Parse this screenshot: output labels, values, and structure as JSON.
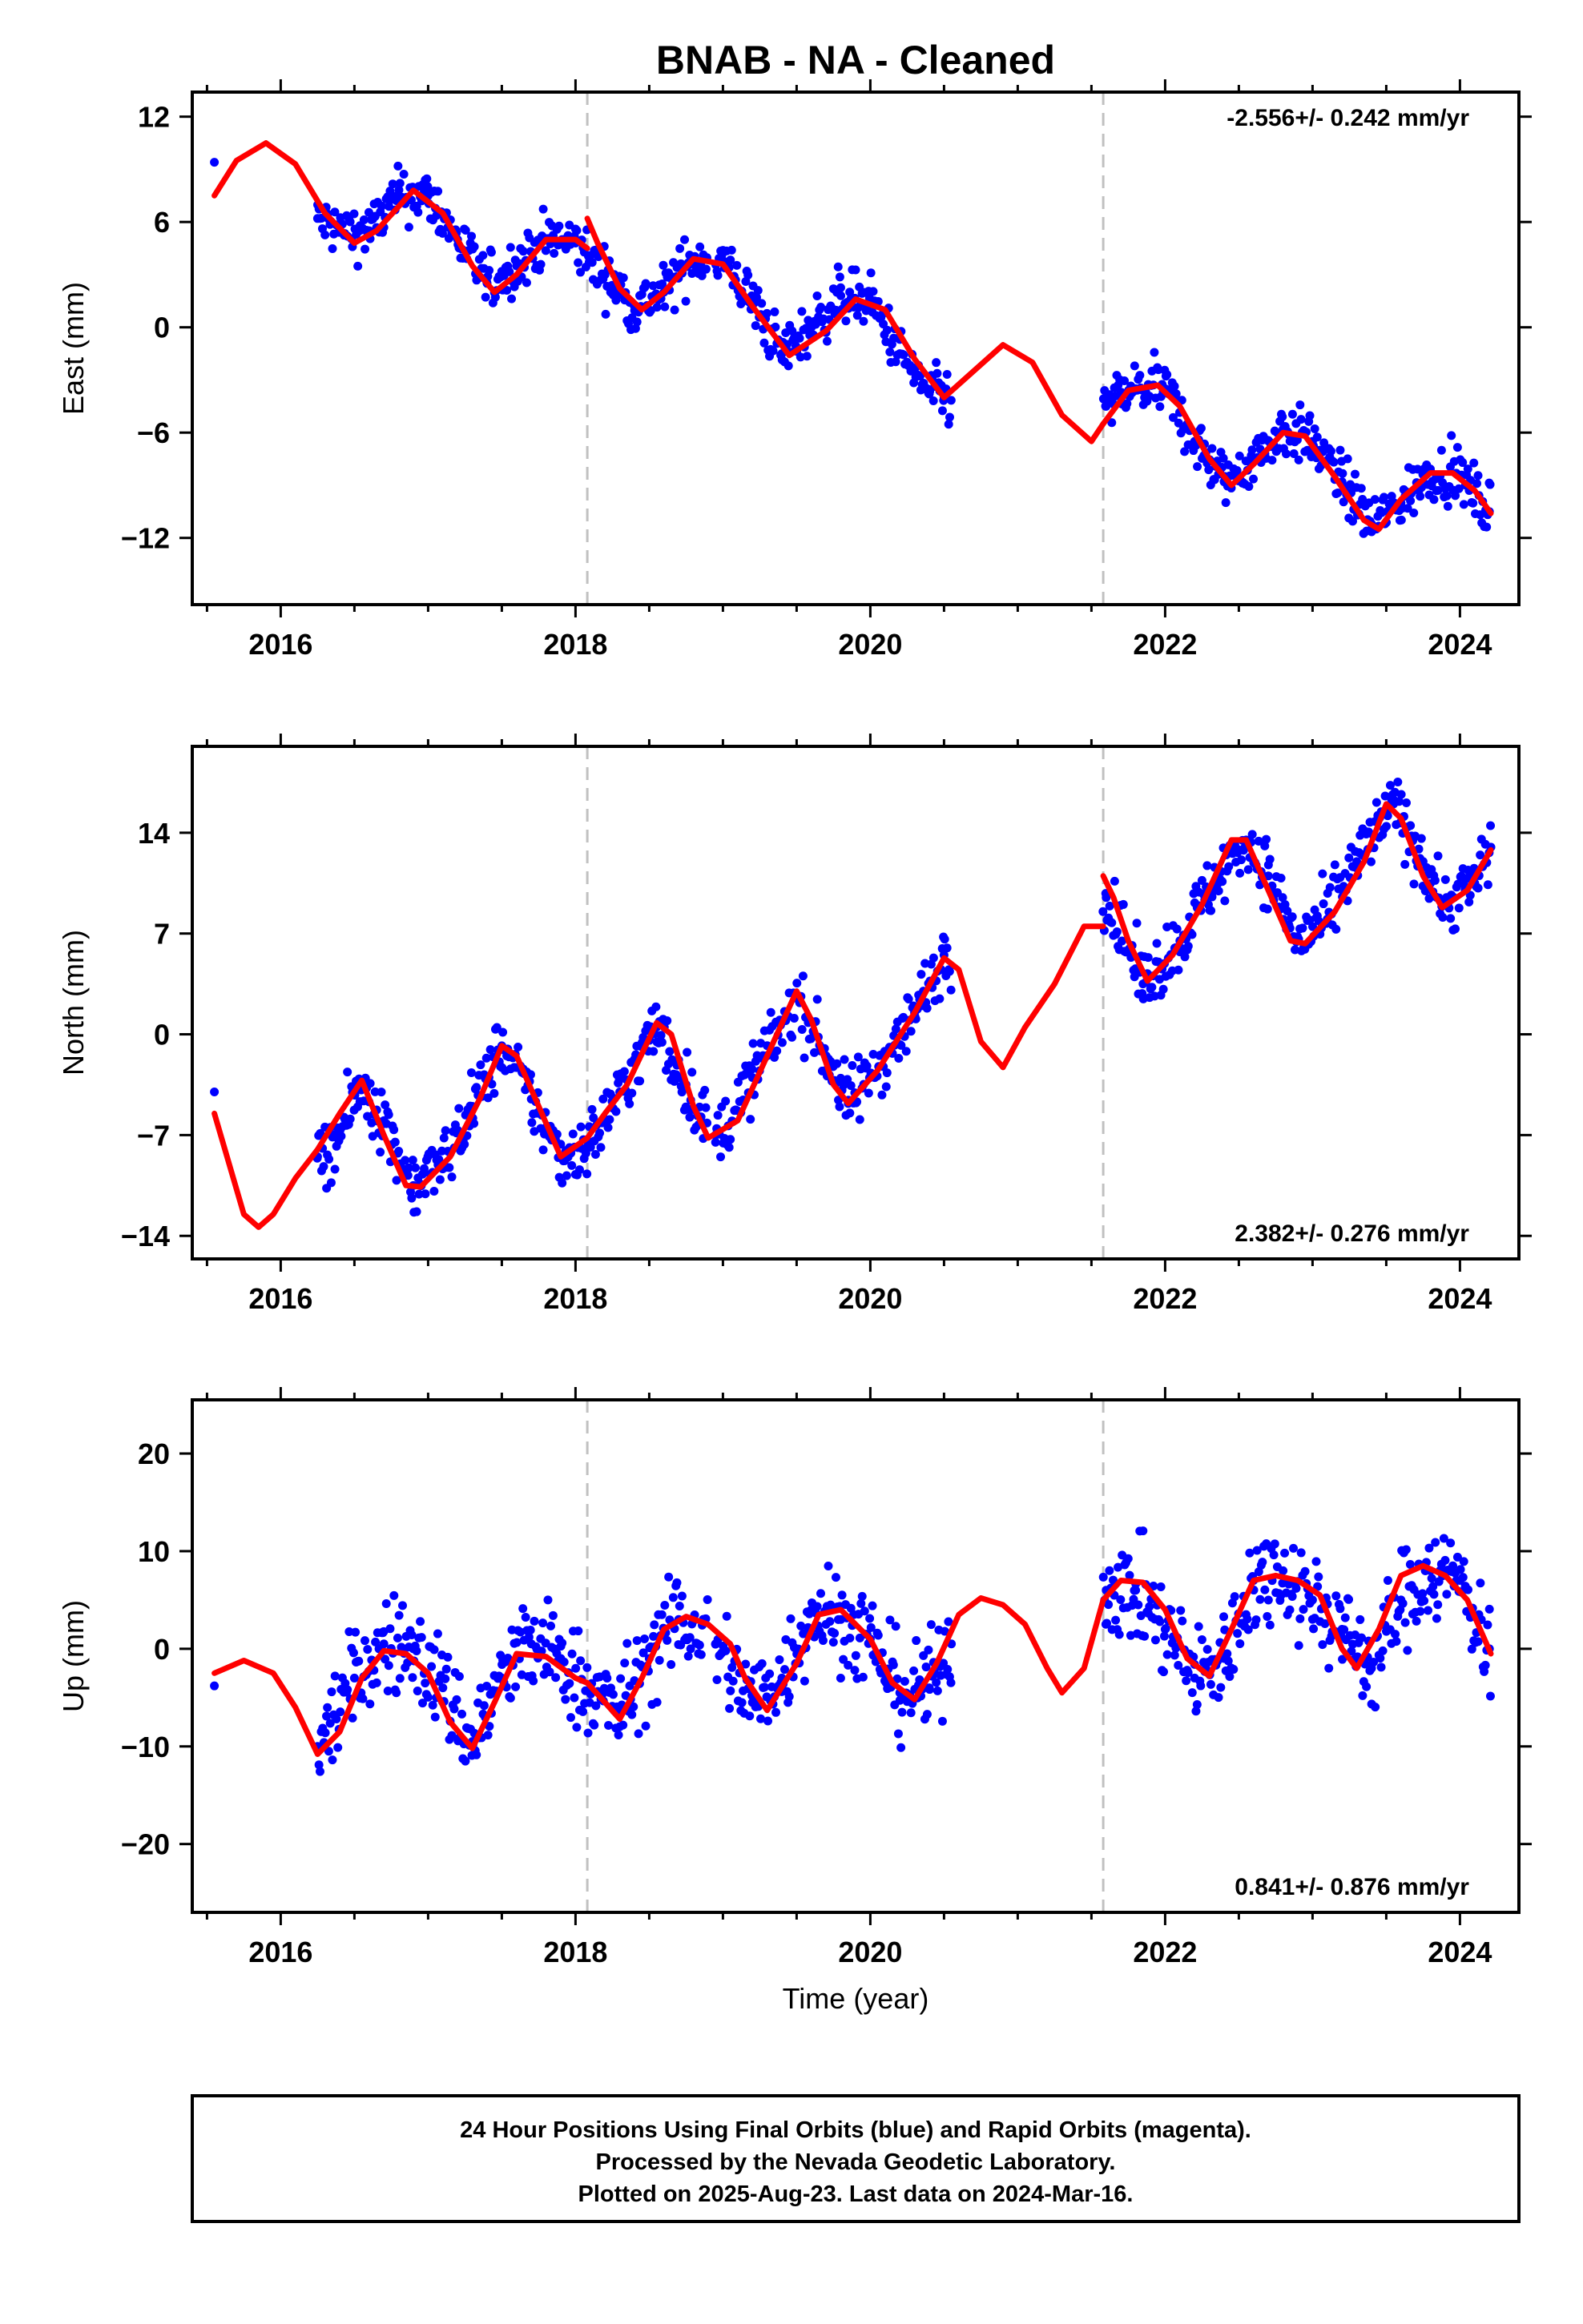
{
  "title": "BNAB  - NA - Cleaned",
  "xlabel": "Time (year)",
  "footer": [
    "24 Hour Positions Using Final Orbits (blue) and Rapid Orbits (magenta).",
    "Processed by the Nevada Geodetic Laboratory.",
    "Plotted on 2025-Aug-23. Last data on 2024-Mar-16."
  ],
  "colors": {
    "data": "#0000ff",
    "model": "#ff0000",
    "offset_line": "#c0c0c0",
    "frame": "#000000"
  },
  "chart_data": [
    {
      "type": "scatter",
      "component": "East",
      "ylabel": "East (mm)",
      "rate_label": "-2.556+/- 0.242 mm/yr",
      "rate_position": "top-right",
      "xlim": [
        2015.4,
        2024.4
      ],
      "ylim": [
        -15.8,
        13.4
      ],
      "xticks": [
        2016,
        2018,
        2020,
        2022,
        2024
      ],
      "yticks": [
        -12,
        -6,
        0,
        6,
        12
      ],
      "ytick_labels": [
        "−12",
        "−6",
        "0",
        "6",
        "12"
      ],
      "offsets": [
        2018.08,
        2021.58
      ],
      "grid": false,
      "series": [
        {
          "kind": "points",
          "color": "#0000ff",
          "data_segments": [
            [
              2016.25,
              2018.9
            ],
            [
              2018.95,
              2020.55
            ],
            [
              2021.58,
              2024.21
            ]
          ],
          "x": [
            2015.55,
            2016.25,
            2016.4,
            2016.6,
            2016.8,
            2017.0,
            2017.2,
            2017.4,
            2017.6,
            2017.8,
            2018.0,
            2018.2,
            2018.4,
            2018.6,
            2018.8,
            2019.0,
            2019.2,
            2019.4,
            2019.6,
            2019.8,
            2020.0,
            2020.2,
            2020.4,
            2020.5,
            2021.6,
            2021.8,
            2022.0,
            2022.2,
            2022.4,
            2022.6,
            2022.8,
            2023.0,
            2023.2,
            2023.4,
            2023.6,
            2023.8,
            2024.0,
            2024.2
          ],
          "y": [
            9.4,
            6.2,
            5.5,
            5.5,
            7.5,
            7.5,
            5.0,
            2.5,
            3.5,
            5.0,
            4.8,
            3.0,
            1.2,
            2.0,
            4.0,
            3.8,
            1.5,
            -1.5,
            0.0,
            1.8,
            1.5,
            -1.5,
            -3.8,
            -4.0,
            -4.5,
            -3.5,
            -3.5,
            -6.5,
            -8.8,
            -7.5,
            -5.8,
            -6.5,
            -8.8,
            -11.2,
            -10.0,
            -8.2,
            -8.5,
            -10.5
          ]
        },
        {
          "kind": "model",
          "color": "#ff0000",
          "segments": [
            {
              "x": [
                2015.55,
                2015.7,
                2015.9,
                2016.1,
                2016.3,
                2016.5,
                2016.65,
                2016.9,
                2017.1,
                2017.3,
                2017.45,
                2017.6,
                2017.8,
                2018.0,
                2018.08
              ],
              "y": [
                7.5,
                9.5,
                10.5,
                9.3,
                6.5,
                4.8,
                5.5,
                7.8,
                6.5,
                3.5,
                2.0,
                3.0,
                5.0,
                5.0,
                4.5
              ]
            },
            {
              "x": [
                2018.08,
                2018.15,
                2018.3,
                2018.45,
                2018.6,
                2018.8,
                2019.0,
                2019.2,
                2019.45,
                2019.7,
                2019.9,
                2020.1,
                2020.3,
                2020.5,
                2020.7,
                2020.9,
                2021.1,
                2021.3,
                2021.5,
                2021.58
              ],
              "y": [
                6.2,
                4.8,
                2.2,
                1.0,
                2.0,
                3.9,
                3.6,
                1.2,
                -1.6,
                -0.2,
                1.6,
                1.0,
                -1.8,
                -4.0,
                -2.5,
                -1.0,
                -2.0,
                -5.0,
                -6.5,
                -5.5
              ]
            },
            {
              "x": [
                2021.58,
                2021.75,
                2021.95,
                2022.1,
                2022.3,
                2022.45,
                2022.6,
                2022.8,
                2022.95,
                2023.15,
                2023.35,
                2023.45,
                2023.6,
                2023.8,
                2023.95,
                2024.1,
                2024.21
              ],
              "y": [
                -5.5,
                -3.6,
                -3.3,
                -4.5,
                -7.5,
                -9.0,
                -7.8,
                -6.0,
                -6.2,
                -8.5,
                -11.0,
                -11.5,
                -9.8,
                -8.3,
                -8.3,
                -9.3,
                -10.6
              ]
            }
          ]
        }
      ]
    },
    {
      "type": "scatter",
      "component": "North",
      "ylabel": "North (mm)",
      "rate_label": "2.382+/- 0.276 mm/yr",
      "rate_position": "bottom-right",
      "xlim": [
        2015.4,
        2024.4
      ],
      "ylim": [
        -15.6,
        20.0
      ],
      "xticks": [
        2016,
        2018,
        2020,
        2022,
        2024
      ],
      "yticks": [
        -14,
        -7,
        0,
        7,
        14
      ],
      "ytick_labels": [
        "−14",
        "−7",
        "0",
        "7",
        "14"
      ],
      "offsets": [
        2018.08,
        2021.58
      ],
      "grid": false,
      "series": [
        {
          "kind": "points",
          "color": "#0000ff",
          "data_segments": [
            [
              2016.25,
              2018.9
            ],
            [
              2018.95,
              2020.55
            ],
            [
              2021.58,
              2024.21
            ]
          ],
          "x": [
            2015.55,
            2016.25,
            2016.4,
            2016.55,
            2016.7,
            2016.9,
            2017.1,
            2017.3,
            2017.5,
            2017.7,
            2017.9,
            2018.1,
            2018.3,
            2018.55,
            2018.75,
            2018.95,
            2019.2,
            2019.5,
            2019.7,
            2019.85,
            2020.1,
            2020.3,
            2020.5,
            2021.6,
            2021.85,
            2022.1,
            2022.3,
            2022.55,
            2022.7,
            2022.9,
            2023.1,
            2023.3,
            2023.55,
            2023.75,
            2023.9,
            2024.1,
            2024.21
          ],
          "y": [
            -4.0,
            -8.5,
            -7.0,
            -3.5,
            -6.0,
            -10.5,
            -9.0,
            -5.0,
            -0.8,
            -4.5,
            -8.5,
            -7.5,
            -4.0,
            0.5,
            -3.5,
            -7.5,
            -3.0,
            2.5,
            -1.5,
            -4.8,
            -1.5,
            1.5,
            5.5,
            9.5,
            3.5,
            6.5,
            10.0,
            13.5,
            11.0,
            6.5,
            8.0,
            12.0,
            16.0,
            12.0,
            9.0,
            10.5,
            13.0
          ]
        },
        {
          "kind": "model",
          "color": "#ff0000",
          "segments": [
            {
              "x": [
                2015.55,
                2015.65,
                2015.75,
                2015.85,
                2015.95,
                2016.1,
                2016.25,
                2016.4,
                2016.55,
                2016.7,
                2016.85,
                2016.95,
                2017.15,
                2017.35,
                2017.5,
                2017.6,
                2017.75,
                2017.9,
                2018.08
              ],
              "y": [
                -5.5,
                -9.0,
                -12.5,
                -13.4,
                -12.5,
                -10.0,
                -8.0,
                -5.5,
                -3.2,
                -7.0,
                -10.5,
                -10.6,
                -8.5,
                -4.5,
                -0.8,
                -1.5,
                -5.0,
                -8.5,
                -7.2
              ]
            },
            {
              "x": [
                2018.08,
                2018.2,
                2018.35,
                2018.55,
                2018.65,
                2018.8,
                2018.9,
                2019.1,
                2019.3,
                2019.5,
                2019.6,
                2019.75,
                2019.85,
                2020.05,
                2020.3,
                2020.5,
                2020.6,
                2020.75,
                2020.9,
                2021.05,
                2021.25,
                2021.45,
                2021.58
              ],
              "y": [
                -7.2,
                -5.5,
                -3.5,
                0.8,
                0.0,
                -5.0,
                -7.2,
                -6.0,
                -1.5,
                3.0,
                1.0,
                -3.5,
                -4.8,
                -2.5,
                1.5,
                5.3,
                4.5,
                -0.5,
                -2.3,
                0.5,
                3.5,
                7.5,
                7.5
              ]
            },
            {
              "x": [
                2021.58,
                2021.65,
                2021.75,
                2021.88,
                2022.05,
                2022.25,
                2022.45,
                2022.55,
                2022.7,
                2022.85,
                2022.95,
                2023.15,
                2023.35,
                2023.5,
                2023.6,
                2023.75,
                2023.88,
                2024.05,
                2024.21
              ],
              "y": [
                11.0,
                9.5,
                6.5,
                3.7,
                5.5,
                9.0,
                13.5,
                13.5,
                10.0,
                6.5,
                6.3,
                8.5,
                12.0,
                16.0,
                15.0,
                11.0,
                8.8,
                10.0,
                12.8
              ]
            }
          ]
        }
      ]
    },
    {
      "type": "scatter",
      "component": "Up",
      "ylabel": "Up (mm)",
      "rate_label": "0.841+/- 0.876 mm/yr",
      "rate_position": "bottom-right",
      "xlim": [
        2015.4,
        2024.4
      ],
      "ylim": [
        -27,
        25.5
      ],
      "xticks": [
        2016,
        2018,
        2020,
        2022,
        2024
      ],
      "yticks": [
        -20,
        -10,
        0,
        10,
        20
      ],
      "ytick_labels": [
        "−20",
        "−10",
        "0",
        "10",
        "20"
      ],
      "offsets": [
        2018.08,
        2021.58
      ],
      "grid": false,
      "series": [
        {
          "kind": "points",
          "color": "#0000ff",
          "data_segments": [
            [
              2016.25,
              2018.9
            ],
            [
              2018.95,
              2020.55
            ],
            [
              2021.58,
              2024.21
            ]
          ],
          "x": [
            2015.55,
            2016.25,
            2016.5,
            2016.7,
            2016.9,
            2017.1,
            2017.3,
            2017.5,
            2017.7,
            2017.9,
            2018.1,
            2018.3,
            2018.5,
            2018.7,
            2018.95,
            2019.2,
            2019.4,
            2019.6,
            2019.8,
            2020.0,
            2020.2,
            2020.4,
            2020.55,
            2021.6,
            2021.8,
            2022.0,
            2022.2,
            2022.4,
            2022.6,
            2022.8,
            2023.0,
            2023.2,
            2023.4,
            2023.6,
            2023.8,
            2024.0,
            2024.2
          ],
          "y": [
            -3.8,
            -10.0,
            -3.0,
            0.5,
            0.0,
            -4.0,
            -9.5,
            -3.0,
            0.5,
            -1.0,
            -4.5,
            -6.5,
            -1.0,
            3.0,
            0.5,
            -5.5,
            -3.0,
            4.0,
            3.0,
            1.0,
            -4.5,
            -4.0,
            0.5,
            6.0,
            6.0,
            2.0,
            -3.0,
            -1.0,
            7.0,
            8.0,
            5.0,
            2.0,
            -2.0,
            5.0,
            8.0,
            7.0,
            0.0
          ]
        },
        {
          "kind": "model",
          "color": "#ff0000",
          "segments": [
            {
              "x": [
                2015.55,
                2015.75,
                2015.95,
                2016.1,
                2016.25,
                2016.4,
                2016.55,
                2016.7,
                2016.85,
                2017.0,
                2017.15,
                2017.3,
                2017.45,
                2017.6,
                2017.8,
                2018.0,
                2018.08
              ],
              "y": [
                -2.5,
                -1.2,
                -2.5,
                -6.0,
                -10.8,
                -8.5,
                -3.0,
                -0.2,
                -0.5,
                -2.5,
                -7.5,
                -10.2,
                -5.5,
                -0.5,
                -0.8,
                -3.0,
                -3.5
              ]
            },
            {
              "x": [
                2018.08,
                2018.2,
                2018.3,
                2018.45,
                2018.6,
                2018.75,
                2018.9,
                2019.05,
                2019.15,
                2019.3,
                2019.5,
                2019.65,
                2019.8,
                2020.0,
                2020.15,
                2020.3,
                2020.45,
                2020.6,
                2020.75,
                2020.9,
                2021.05,
                2021.2,
                2021.3,
                2021.45,
                2021.58
              ],
              "y": [
                -3.5,
                -5.5,
                -7.2,
                -3.0,
                2.0,
                3.3,
                2.5,
                0.5,
                -3.0,
                -6.3,
                -1.5,
                3.5,
                4.0,
                1.0,
                -3.5,
                -5.2,
                -1.5,
                3.5,
                5.2,
                4.5,
                2.5,
                -2.0,
                -4.5,
                -2.0,
                5.0
              ]
            },
            {
              "x": [
                2021.58,
                2021.7,
                2021.85,
                2022.0,
                2022.15,
                2022.3,
                2022.45,
                2022.6,
                2022.75,
                2022.9,
                2023.05,
                2023.2,
                2023.3,
                2023.45,
                2023.6,
                2023.75,
                2023.9,
                2024.05,
                2024.21
              ],
              "y": [
                5.0,
                7.0,
                6.8,
                4.0,
                -1.0,
                -2.8,
                2.0,
                7.0,
                7.5,
                7.0,
                5.5,
                0.0,
                -2.0,
                2.0,
                7.5,
                8.5,
                7.5,
                5.0,
                -0.5
              ]
            }
          ]
        }
      ]
    }
  ]
}
